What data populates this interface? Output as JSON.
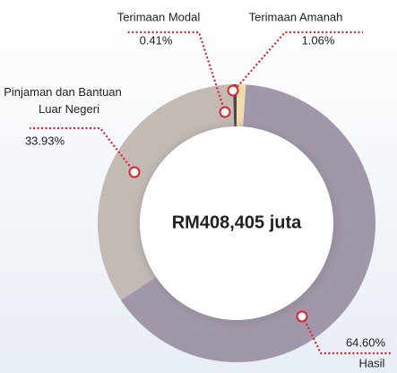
{
  "chart_data": {
    "type": "pie",
    "donut": true,
    "center_label": "RM408,405 juta",
    "categories": [
      "Terimaan Amanah",
      "Hasil",
      "Pinjaman dan Bantuan Luar Negeri",
      "Terimaan Modal"
    ],
    "values": [
      1.06,
      64.6,
      33.93,
      0.41
    ],
    "value_labels": [
      "1.06%",
      "64.60%",
      "33.93%",
      "0.41%"
    ],
    "colors": [
      "#f3dcac",
      "#a197aa",
      "#c3bab4",
      "#4f4449"
    ]
  }
}
